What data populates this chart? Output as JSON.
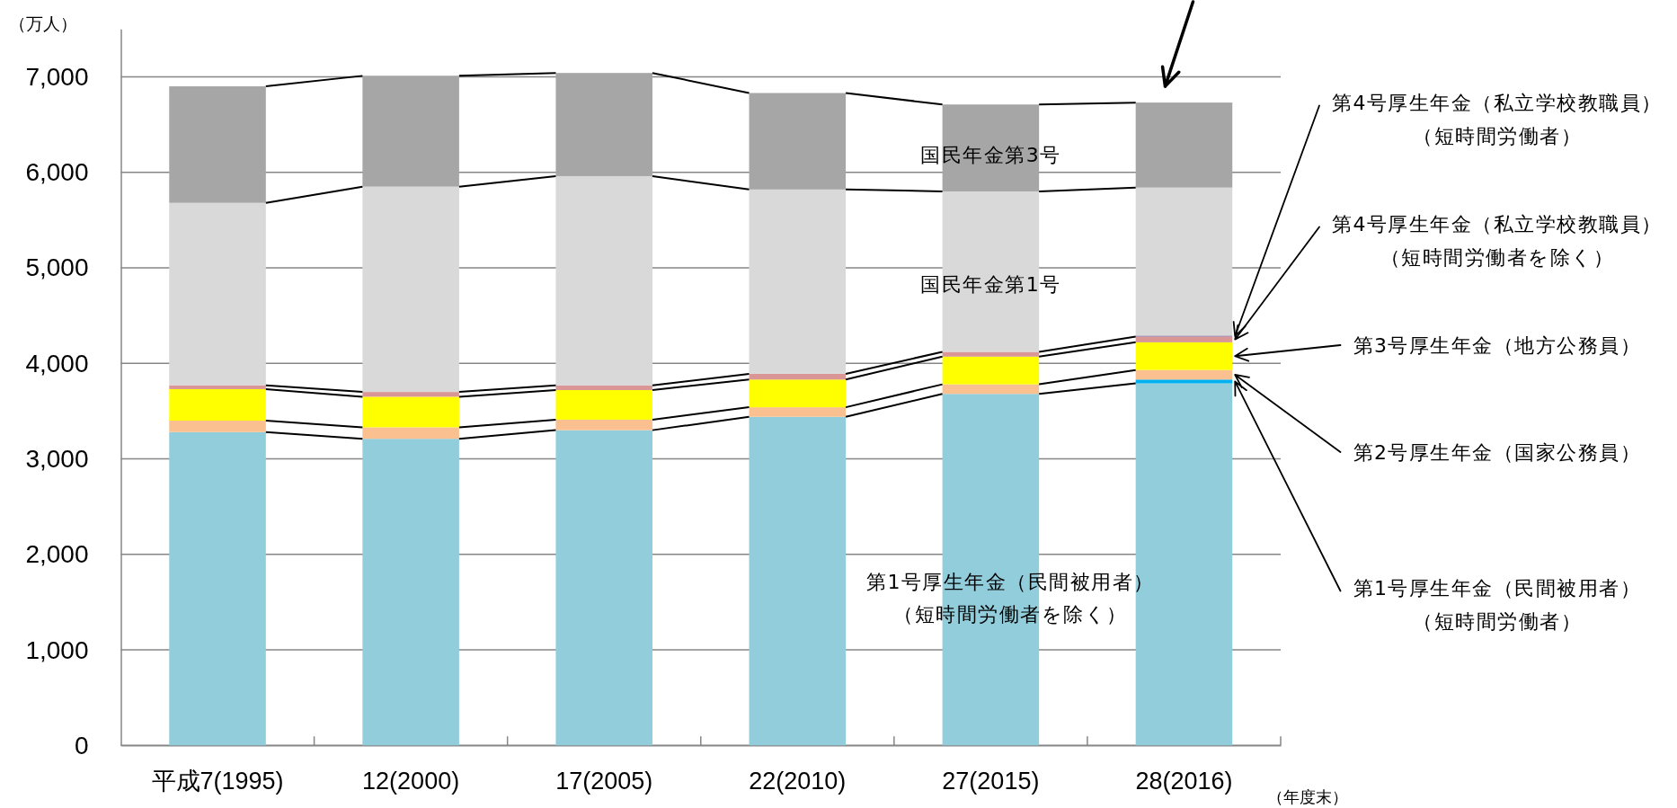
{
  "chart_data": {
    "type": "bar",
    "stacked": true,
    "ylabel": "（万人）",
    "xlabel": "（年度末）",
    "categories": [
      "平成7(1995)",
      "12(2000)",
      "17(2005)",
      "22(2010)",
      "27(2015)",
      "28(2016)"
    ],
    "ylim": [
      0,
      7500
    ],
    "yticks": [
      0,
      {
        "value": 1000,
        "label": "1,000"
      },
      {
        "value": 2000,
        "label": "2,000"
      },
      {
        "value": 3000,
        "label": "3,000"
      },
      {
        "value": 4000,
        "label": "4,000"
      },
      {
        "value": 5000,
        "label": "5,000"
      },
      {
        "value": 6000,
        "label": "6,000"
      },
      {
        "value": 7000,
        "label": "7,000"
      }
    ],
    "grid": "y",
    "series": [
      {
        "name": "第1号厚生年金（民間被用者）（短時間労働者を除く）",
        "color": "#92cddc",
        "values": [
          3280,
          3210,
          3300,
          3440,
          3680,
          3790
        ]
      },
      {
        "name": "第1号厚生年金（民間被用者）（短時間労働者）",
        "color": "#00b0f0",
        "values": [
          null,
          null,
          null,
          null,
          null,
          40
        ]
      },
      {
        "name": "第2号厚生年金（国家公務員）",
        "color": "#fac090",
        "values": [
          120,
          120,
          110,
          100,
          100,
          100
        ]
      },
      {
        "name": "第3号厚生年金（地方公務員）",
        "color": "#ffff00",
        "values": [
          330,
          320,
          310,
          290,
          290,
          290
        ]
      },
      {
        "name": "第4号厚生年金（私立学校教職員）（短時間労働者を除く）",
        "color": "#d99694",
        "values": [
          40,
          50,
          50,
          60,
          50,
          60
        ]
      },
      {
        "name": "第4号厚生年金（私立学校教職員）（短時間労働者）",
        "color": "#8064a2",
        "values": [
          null,
          null,
          null,
          null,
          null,
          10
        ]
      },
      {
        "name": "国民年金第1号",
        "color": "#d9d9d9",
        "values": [
          1910,
          2150,
          2190,
          1930,
          1680,
          1550
        ]
      },
      {
        "name": "国民年金第3号",
        "color": "#a6a6a6",
        "values": [
          1220,
          1160,
          1080,
          1010,
          910,
          890
        ]
      }
    ]
  }
}
